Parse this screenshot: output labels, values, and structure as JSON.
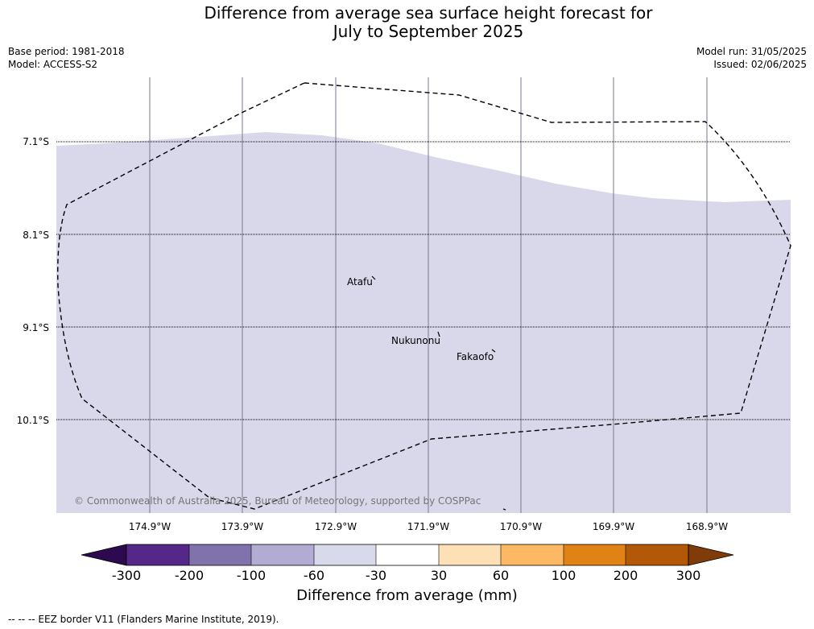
{
  "title": {
    "line1": "Difference from average sea surface height forecast for",
    "line2": "July to September 2025"
  },
  "meta": {
    "base_period": "Base period: 1981-2018",
    "model": "Model: ACCESS-S2",
    "model_run": "Model run: 31/05/2025",
    "issued": "Issued: 02/06/2025"
  },
  "map": {
    "lat_labels": [
      "7.1°S",
      "8.1°S",
      "9.1°S",
      "10.1°S"
    ],
    "lon_labels": [
      "174.9°W",
      "173.9°W",
      "172.9°W",
      "171.9°W",
      "170.9°W",
      "169.9°W",
      "168.9°W"
    ],
    "places": [
      {
        "name": "Atafu"
      },
      {
        "name": "Nukunonu"
      },
      {
        "name": "Fakaofo"
      }
    ],
    "fill_category": "-60 to -30",
    "fill_color": "#d8d8ea",
    "copyright": "© Commonwealth of Australia 2025, Bureau of Meteorology, supported by COSPPac"
  },
  "colorbar": {
    "label": "Difference from average (mm)",
    "ticks": [
      "-300",
      "-200",
      "-100",
      "-60",
      "-30",
      "30",
      "60",
      "100",
      "200",
      "300"
    ],
    "colors": [
      "#2d0a4f",
      "#542788",
      "#8073ac",
      "#b2abd2",
      "#d8daeb",
      "#ffffff",
      "#fee0b6",
      "#fdb863",
      "#e08214",
      "#b35806",
      "#7f3b08"
    ]
  },
  "footer": "--  --  -- EEZ border V11 (Flanders Marine Institute, 2019)."
}
